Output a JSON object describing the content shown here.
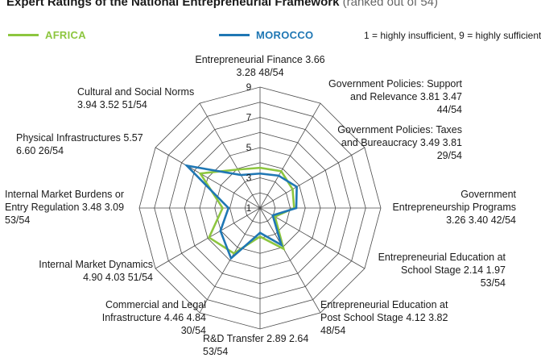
{
  "title": "Expert Ratings of the National Entrepreneurial Framework",
  "subtitle": "(ranked out of 54)",
  "legend": {
    "items": [
      {
        "label": "AFRICA",
        "color": "#8dc63f"
      },
      {
        "label": "MOROCCO",
        "color": "#1f77b4"
      }
    ]
  },
  "scale_note": "1 = highly insufficient, 9 = highly sufficient",
  "chart_data": {
    "type": "radar",
    "title": "Expert Ratings of the National Entrepreneurial Framework",
    "subtitle": "(ranked out of 54)",
    "scale_min": 1,
    "scale_max": 9,
    "ticks": [
      "1",
      "3",
      "5",
      "7",
      "9"
    ],
    "tick_values": [
      1,
      3,
      5,
      7,
      9
    ],
    "grid": true,
    "legend_position": "top",
    "axes": [
      {
        "lines": [
          "Entrepreneurial Finance  3.66",
          "3.28  48/54"
        ],
        "africa": 3.66,
        "morocco": 3.28,
        "rank": "48/54"
      },
      {
        "lines": [
          "Government Policies: Support",
          "and Relevance  3.81  3.47",
          "44/54"
        ],
        "africa": 3.81,
        "morocco": 3.47,
        "rank": "44/54"
      },
      {
        "lines": [
          "Government Policies: Taxes",
          "and Bureaucracy  3.49  3.81",
          "29/54"
        ],
        "africa": 3.49,
        "morocco": 3.81,
        "rank": "29/54"
      },
      {
        "lines": [
          "Government",
          "Entrepreneurship Programs",
          "3.26  3.40  42/54"
        ],
        "africa": 3.26,
        "morocco": 3.4,
        "rank": "42/54"
      },
      {
        "lines": [
          "Entrepreneurial Education at",
          "School Stage  2.14  1.97",
          "53/54"
        ],
        "africa": 2.14,
        "morocco": 1.97,
        "rank": "53/54"
      },
      {
        "lines": [
          "Entrepreneurial Education at",
          "Post School Stage  4.12  3.82",
          "48/54"
        ],
        "africa": 4.12,
        "morocco": 3.82,
        "rank": "48/54"
      },
      {
        "lines": [
          "R&D Transfer  2.89  2.64",
          "53/54"
        ],
        "africa": 2.89,
        "morocco": 2.64,
        "rank": "53/54"
      },
      {
        "lines": [
          "Commercial and Legal",
          "Infrastructure  4.46  4.84",
          "30/54"
        ],
        "africa": 4.46,
        "morocco": 4.84,
        "rank": "30/54"
      },
      {
        "lines": [
          "Internal Market Dynamics",
          "4.90  4.03  51/54"
        ],
        "africa": 4.9,
        "morocco": 4.03,
        "rank": "51/54"
      },
      {
        "lines": [
          "Internal Market Burdens or",
          "Entry Regulation  3.48  3.09",
          "53/54"
        ],
        "africa": 3.48,
        "morocco": 3.09,
        "rank": "53/54"
      },
      {
        "lines": [
          "Physical Infrastructures  5.57",
          "6.60  26/54"
        ],
        "africa": 5.57,
        "morocco": 6.6,
        "rank": "26/54"
      },
      {
        "lines": [
          "Cultural and Social Norms",
          "3.94  3.52  51/54"
        ],
        "africa": 3.94,
        "morocco": 3.52,
        "rank": "51/54"
      }
    ],
    "series": [
      {
        "name": "AFRICA",
        "key": "africa",
        "color": "#8dc63f"
      },
      {
        "name": "MOROCCO",
        "key": "morocco",
        "color": "#1f77b4"
      }
    ]
  }
}
